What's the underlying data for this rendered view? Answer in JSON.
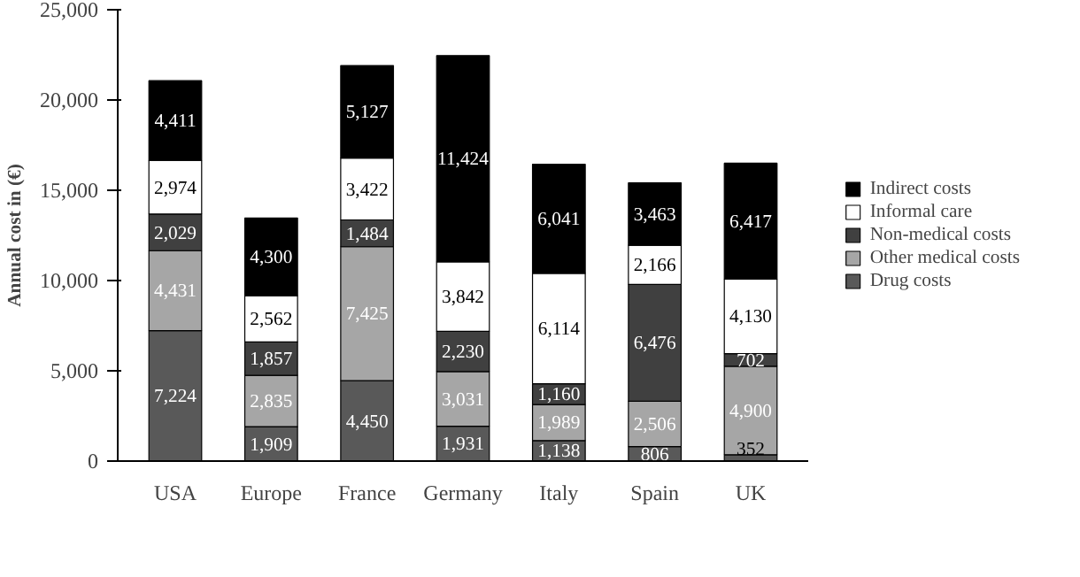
{
  "chart_data": {
    "type": "bar",
    "stacked": true,
    "ylabel": "Annual cost in (€)",
    "categories": [
      "USA",
      "Europe",
      "France",
      "Germany",
      "Italy",
      "Spain",
      "UK"
    ],
    "series": [
      {
        "name": "Drug costs",
        "color": "#595959",
        "values": [
          7224,
          1909,
          4450,
          1931,
          1138,
          806,
          352
        ],
        "value_labels": [
          "7,224",
          "1,909",
          "4,450",
          "1,931",
          "1,138",
          "806",
          "352"
        ]
      },
      {
        "name": "Other medical costs",
        "color": "#a6a6a6",
        "values": [
          4431,
          2835,
          7425,
          3031,
          1989,
          2506,
          4900
        ],
        "value_labels": [
          "4,431",
          "2,835",
          "7,425",
          "3,031",
          "1,989",
          "2,506",
          "4,900"
        ]
      },
      {
        "name": "Non-medical costs",
        "color": "#404040",
        "values": [
          2029,
          1857,
          1484,
          2230,
          1160,
          6476,
          702
        ],
        "value_labels": [
          "2,029",
          "1,857",
          "1,484",
          "2,230",
          "1,160",
          "6,476",
          "702"
        ]
      },
      {
        "name": "Informal care",
        "color": "#ffffff",
        "values": [
          2974,
          2562,
          3422,
          3842,
          6114,
          2166,
          4130
        ],
        "value_labels": [
          "2,974",
          "2,562",
          "3,422",
          "3,842",
          "6,114",
          "2,166",
          "4,130"
        ]
      },
      {
        "name": "Indirect costs",
        "color": "#000000",
        "values": [
          4411,
          4300,
          5127,
          11424,
          6041,
          3463,
          6417
        ],
        "value_labels": [
          "4,411",
          "4,300",
          "5,127",
          "11,424",
          "6,041",
          "3,463",
          "6,417"
        ]
      }
    ],
    "ylim": [
      0,
      25000
    ],
    "yticks": [
      {
        "value": 0,
        "label": "0"
      },
      {
        "value": 5000,
        "label": "5,000"
      },
      {
        "value": 10000,
        "label": "10,000"
      },
      {
        "value": 15000,
        "label": "15,000"
      },
      {
        "value": 20000,
        "label": "20,000"
      },
      {
        "value": 25000,
        "label": "25,000"
      }
    ],
    "legend": "right",
    "grid": false
  }
}
